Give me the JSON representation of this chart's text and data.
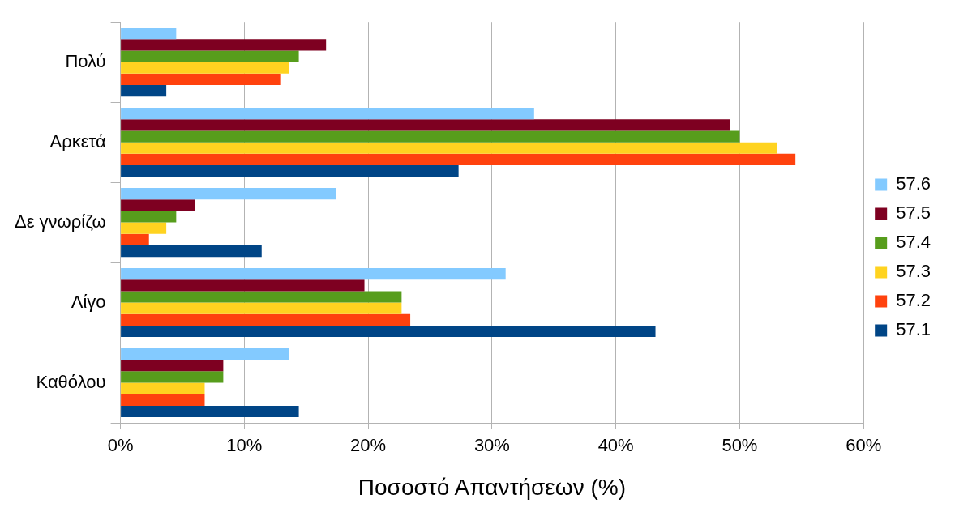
{
  "chart_data": {
    "type": "bar",
    "orientation": "horizontal",
    "xlabel": "Ποσοστό Απαντήσεων (%)",
    "categories": [
      "Πολύ",
      "Αρκετά",
      "Δε γνωρίζω",
      "Λίγο",
      "Καθόλου"
    ],
    "series": [
      {
        "name": "57.6",
        "color": "#83caff",
        "values": [
          4.5,
          33.4,
          17.4,
          31.1,
          13.6
        ]
      },
      {
        "name": "57.5",
        "color": "#7e0021",
        "values": [
          16.6,
          49.2,
          6.0,
          19.7,
          8.3
        ]
      },
      {
        "name": "57.4",
        "color": "#579d1c",
        "values": [
          14.4,
          50.0,
          4.5,
          22.7,
          8.3
        ]
      },
      {
        "name": "57.3",
        "color": "#ffd320",
        "values": [
          13.6,
          53.0,
          3.7,
          22.7,
          6.8
        ]
      },
      {
        "name": "57.2",
        "color": "#ff420e",
        "values": [
          12.9,
          54.5,
          2.3,
          23.4,
          6.8
        ]
      },
      {
        "name": "57.1",
        "color": "#004586",
        "values": [
          3.7,
          27.3,
          11.4,
          43.2,
          14.4
        ]
      }
    ],
    "xlim": [
      0,
      60
    ],
    "xticks": [
      {
        "value": 0,
        "label": "0%"
      },
      {
        "value": 10,
        "label": "10%"
      },
      {
        "value": 20,
        "label": "20%"
      },
      {
        "value": 30,
        "label": "30%"
      },
      {
        "value": 40,
        "label": "40%"
      },
      {
        "value": 50,
        "label": "50%"
      },
      {
        "value": 60,
        "label": "60%"
      }
    ],
    "grid": "x",
    "legend": "right"
  }
}
